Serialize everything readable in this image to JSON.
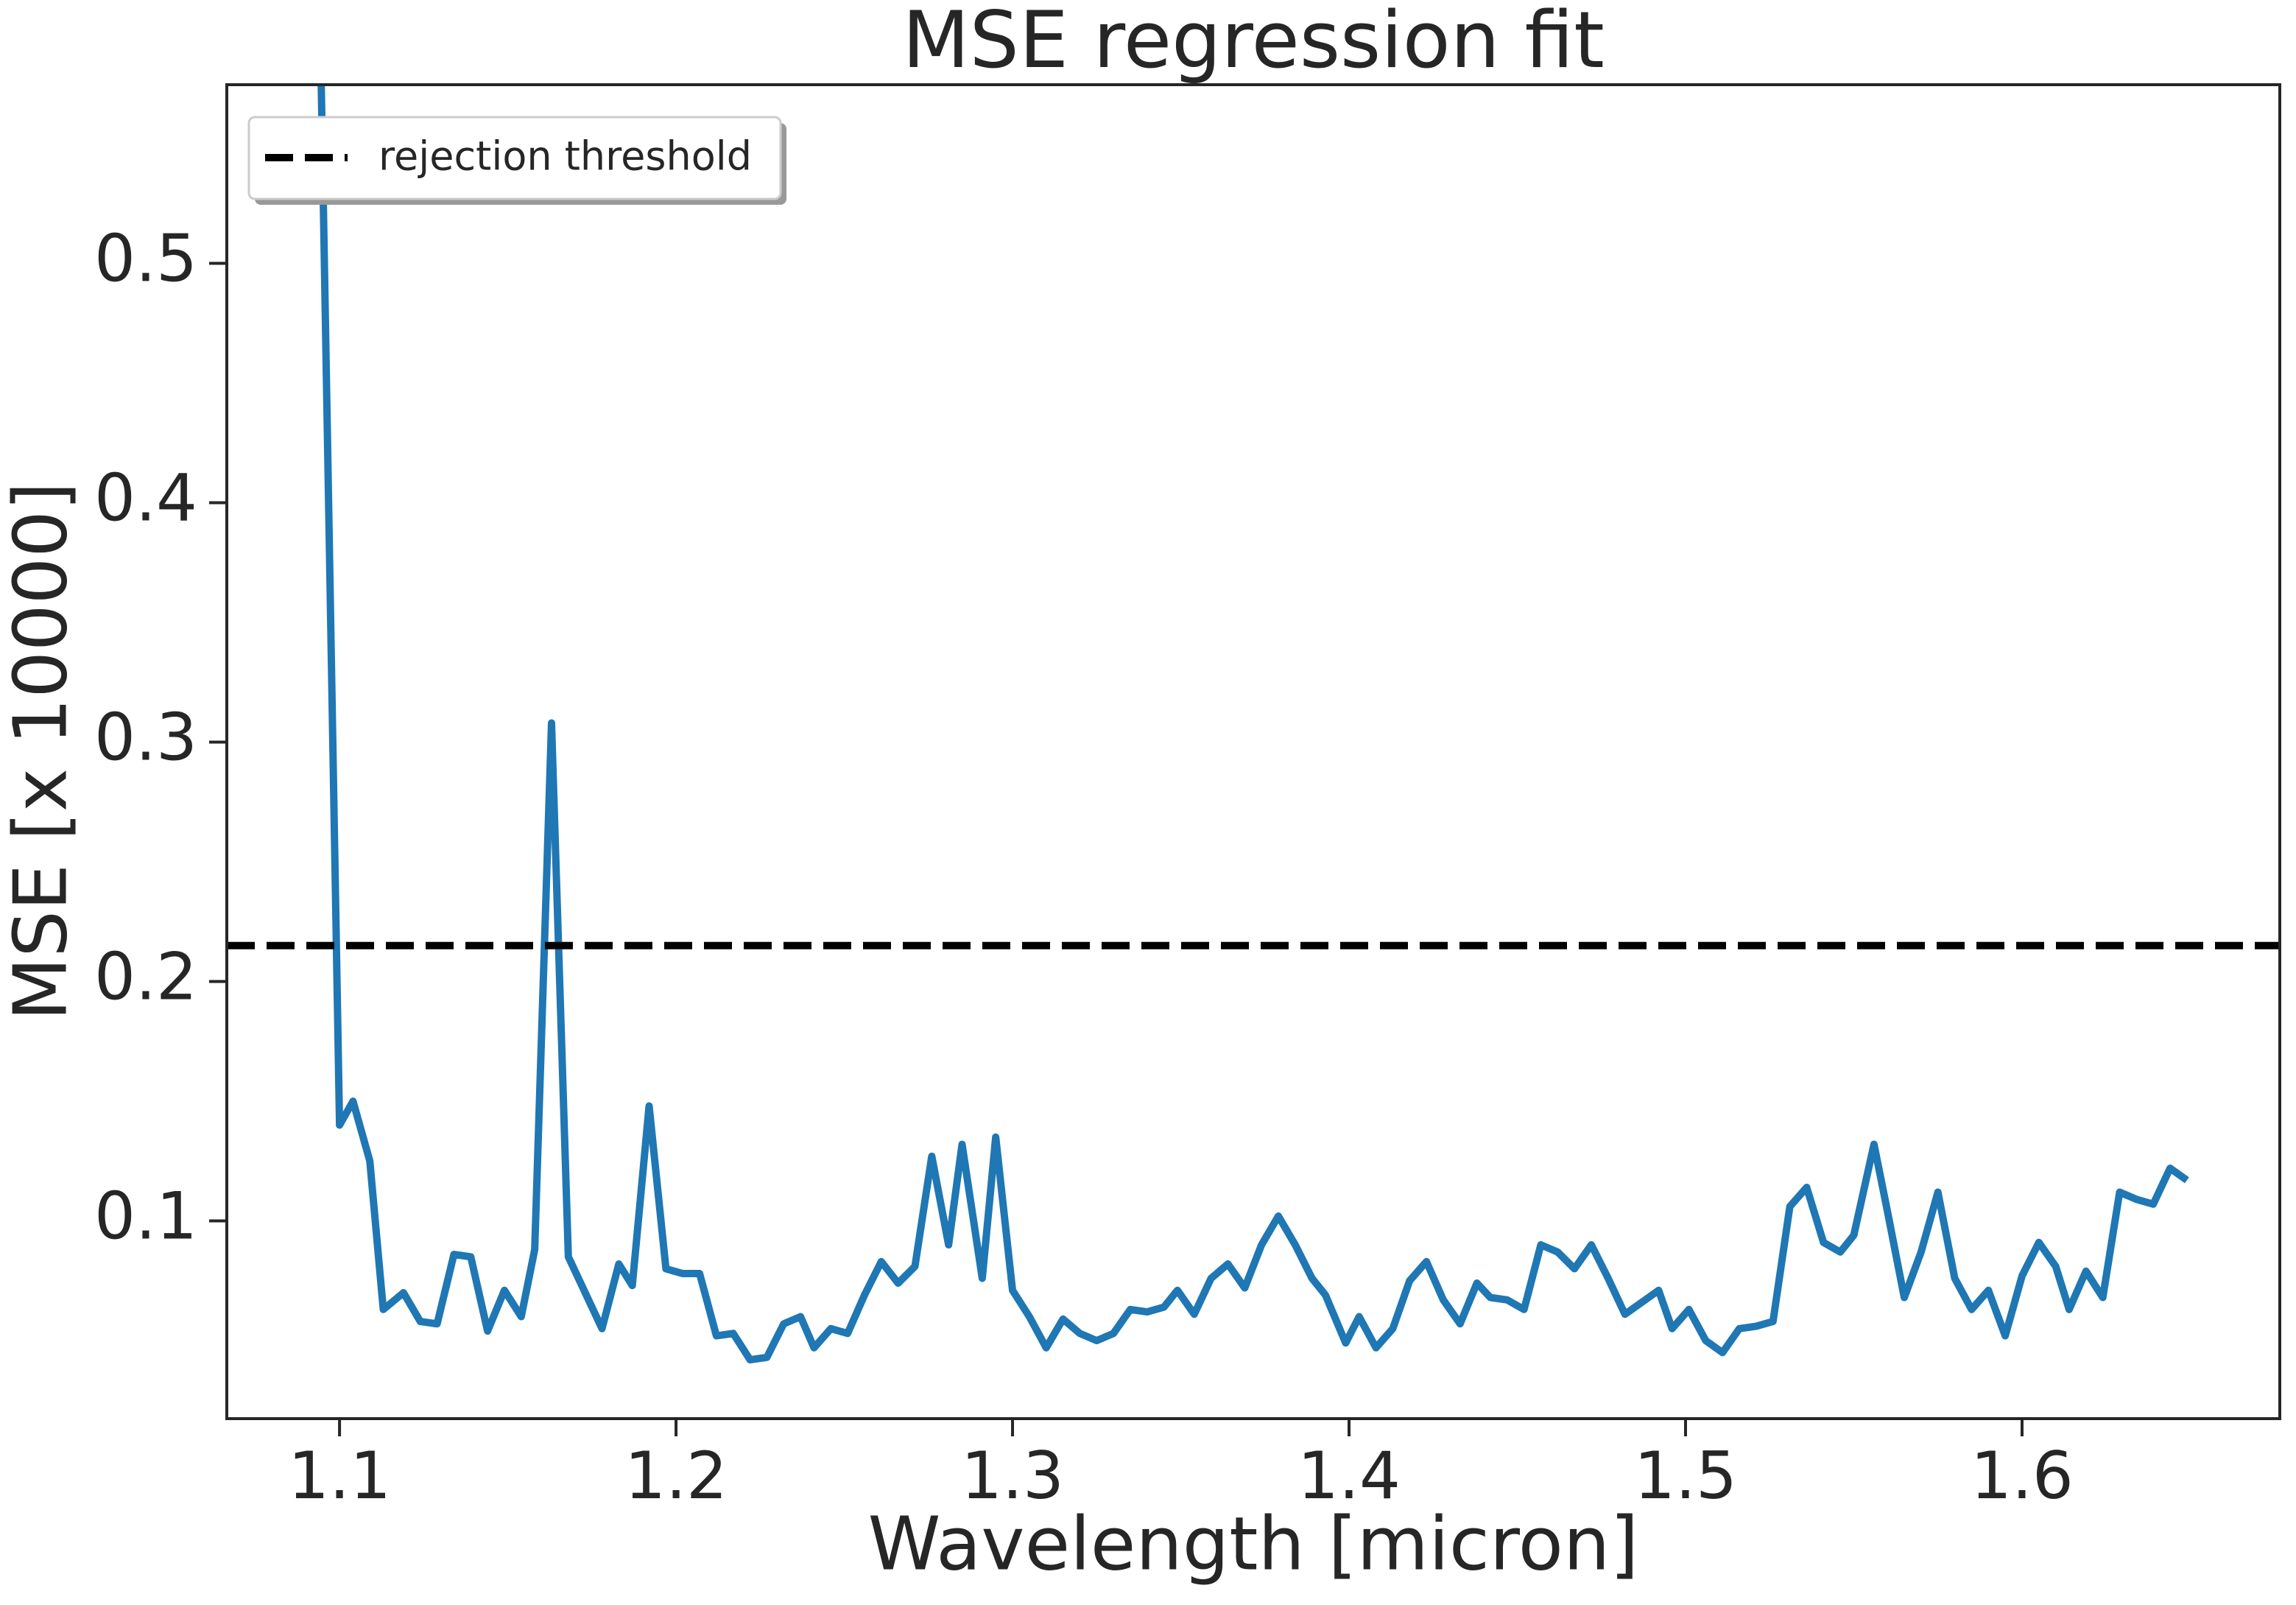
{
  "chart_data": {
    "type": "line",
    "title": "MSE regression fit",
    "xlabel": "Wavelength [micron]",
    "ylabel": "MSE [x 10000]",
    "x": [
      1.094,
      1.1,
      1.104,
      1.109,
      1.113,
      1.119,
      1.124,
      1.129,
      1.134,
      1.139,
      1.144,
      1.149,
      1.154,
      1.158,
      1.163,
      1.168,
      1.173,
      1.178,
      1.183,
      1.187,
      1.192,
      1.197,
      1.202,
      1.207,
      1.212,
      1.217,
      1.222,
      1.227,
      1.232,
      1.237,
      1.241,
      1.246,
      1.251,
      1.256,
      1.261,
      1.266,
      1.271,
      1.276,
      1.281,
      1.285,
      1.291,
      1.295,
      1.3,
      1.305,
      1.31,
      1.315,
      1.32,
      1.325,
      1.33,
      1.335,
      1.34,
      1.345,
      1.349,
      1.354,
      1.359,
      1.364,
      1.369,
      1.374,
      1.379,
      1.384,
      1.389,
      1.393,
      1.399,
      1.403,
      1.408,
      1.413,
      1.418,
      1.423,
      1.428,
      1.433,
      1.438,
      1.442,
      1.447,
      1.452,
      1.457,
      1.462,
      1.467,
      1.472,
      1.477,
      1.482,
      1.486,
      1.492,
      1.496,
      1.501,
      1.506,
      1.511,
      1.516,
      1.521,
      1.526,
      1.531,
      1.536,
      1.541,
      1.546,
      1.55,
      1.556,
      1.56,
      1.565,
      1.57,
      1.575,
      1.58,
      1.585,
      1.59,
      1.595,
      1.6,
      1.605,
      1.61,
      1.614,
      1.619,
      1.624,
      1.629,
      1.634,
      1.639,
      1.644,
      1.649
    ],
    "series": [
      {
        "color": "#1f77b4",
        "values": [
          0.62,
          0.14,
          0.15,
          0.125,
          0.063,
          0.07,
          0.058,
          0.057,
          0.086,
          0.085,
          0.054,
          0.071,
          0.06,
          0.088,
          0.308,
          0.085,
          0.07,
          0.055,
          0.082,
          0.073,
          0.148,
          0.08,
          0.078,
          0.078,
          0.052,
          0.053,
          0.042,
          0.043,
          0.057,
          0.06,
          0.047,
          0.055,
          0.053,
          0.069,
          0.083,
          0.074,
          0.081,
          0.127,
          0.09,
          0.132,
          0.076,
          0.135,
          0.071,
          0.06,
          0.047,
          0.059,
          0.053,
          0.05,
          0.053,
          0.063,
          0.062,
          0.064,
          0.071,
          0.061,
          0.076,
          0.082,
          0.072,
          0.09,
          0.102,
          0.09,
          0.076,
          0.069,
          0.049,
          0.06,
          0.047,
          0.055,
          0.075,
          0.083,
          0.067,
          0.057,
          0.074,
          0.068,
          0.067,
          0.063,
          0.09,
          0.087,
          0.08,
          0.09,
          0.076,
          0.061,
          0.065,
          0.071,
          0.055,
          0.063,
          0.05,
          0.045,
          0.055,
          0.056,
          0.058,
          0.106,
          0.114,
          0.091,
          0.087,
          0.094,
          0.132,
          0.104,
          0.068,
          0.087,
          0.112,
          0.076,
          0.063,
          0.071,
          0.052,
          0.077,
          0.091,
          0.081,
          0.063,
          0.079,
          0.068,
          0.112,
          0.109,
          0.107,
          0.122,
          0.117
        ]
      }
    ],
    "threshold": {
      "name": "rejection threshold",
      "value": 0.215,
      "color": "#000000"
    },
    "xlim": [
      1.0665,
      1.6766
    ],
    "ylim": [
      0.0174,
      0.5746
    ],
    "xticks": [
      1.1,
      1.2,
      1.3,
      1.4,
      1.5,
      1.6
    ],
    "yticks": [
      0.1,
      0.2,
      0.3,
      0.4,
      0.5
    ],
    "legend": "upper left"
  }
}
